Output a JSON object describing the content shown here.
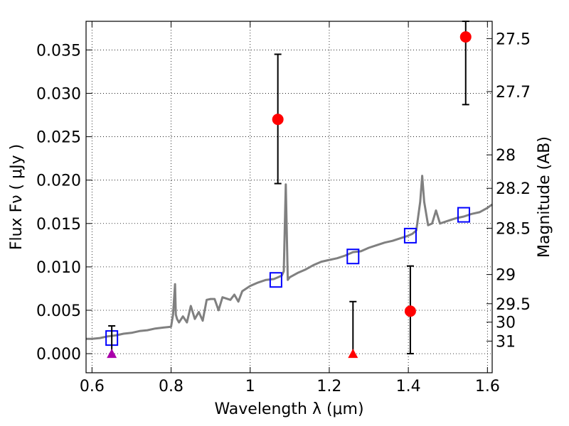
{
  "chart_data": {
    "type": "scatter",
    "xlabel": "Wavelength  λ (μm)",
    "ylabel": "Flux  Fν  ( μJy )",
    "y2label": "Magnitude (AB)",
    "xlim": [
      0.585,
      1.612
    ],
    "ylim": [
      -0.0022,
      0.0383
    ],
    "grid": true,
    "x_ticks": [
      0.6,
      0.8,
      1.0,
      1.2,
      1.4,
      1.6
    ],
    "x_tick_labels": [
      "0.6",
      "0.8",
      "1",
      "1.2",
      "1.4",
      "1.6"
    ],
    "y_ticks": [
      0.0,
      0.005,
      0.01,
      0.015,
      0.02,
      0.025,
      0.03,
      0.035
    ],
    "y_tick_labels": [
      "0.000",
      "0.005",
      "0.010",
      "0.015",
      "0.020",
      "0.025",
      "0.030",
      "0.035"
    ],
    "mag_ticks": [
      27.5,
      27.7,
      28,
      28.2,
      28.5,
      29,
      29.5,
      30,
      31
    ],
    "mag_tick_labels": [
      "27.5",
      "27.7",
      "28",
      "28.2",
      "28.5",
      "29",
      "29.5",
      "30",
      "31"
    ],
    "colors": {
      "model": "#808080",
      "model_photometry": "#0000ff",
      "observed": "#ff0000",
      "upper_limit": "#ff0000",
      "upper_limit_alt": "#aa00aa",
      "errorbar": "#000000",
      "grid": "#000000"
    },
    "series": [
      {
        "type": "line",
        "x": [
          0.585,
          0.6,
          0.62,
          0.64,
          0.66,
          0.68,
          0.7,
          0.72,
          0.74,
          0.76,
          0.78,
          0.8,
          0.805,
          0.81,
          0.812,
          0.815,
          0.82,
          0.83,
          0.84,
          0.85,
          0.86,
          0.87,
          0.88,
          0.89,
          0.9,
          0.91,
          0.92,
          0.93,
          0.95,
          0.96,
          0.97,
          0.98,
          1.0,
          1.02,
          1.04,
          1.06,
          1.07,
          1.08,
          1.085,
          1.09,
          1.095,
          1.1,
          1.12,
          1.14,
          1.16,
          1.18,
          1.2,
          1.22,
          1.24,
          1.26,
          1.28,
          1.3,
          1.32,
          1.34,
          1.36,
          1.38,
          1.4,
          1.41,
          1.42,
          1.43,
          1.435,
          1.44,
          1.45,
          1.46,
          1.47,
          1.48,
          1.5,
          1.52,
          1.54,
          1.56,
          1.58,
          1.6,
          1.612
        ],
        "y": [
          0.0017,
          0.0017,
          0.0018,
          0.002,
          0.0021,
          0.0023,
          0.0024,
          0.0026,
          0.0027,
          0.0029,
          0.003,
          0.0031,
          0.0045,
          0.008,
          0.0045,
          0.004,
          0.0036,
          0.0043,
          0.0036,
          0.0055,
          0.004,
          0.0048,
          0.0038,
          0.0062,
          0.0063,
          0.0063,
          0.005,
          0.0065,
          0.0062,
          0.0068,
          0.006,
          0.0072,
          0.0078,
          0.0082,
          0.0085,
          0.0086,
          0.0088,
          0.009,
          0.0095,
          0.0195,
          0.0085,
          0.0088,
          0.0093,
          0.0097,
          0.0102,
          0.0106,
          0.0108,
          0.011,
          0.0113,
          0.0117,
          0.0118,
          0.0122,
          0.0125,
          0.0128,
          0.013,
          0.0133,
          0.0136,
          0.0138,
          0.0142,
          0.0175,
          0.0205,
          0.0175,
          0.0148,
          0.015,
          0.0165,
          0.015,
          0.0153,
          0.0156,
          0.0158,
          0.0161,
          0.0163,
          0.0168,
          0.0172
        ]
      },
      {
        "type": "marker",
        "marker": "square",
        "x": [
          0.65,
          1.065,
          1.26,
          1.405,
          1.54
        ],
        "y": [
          0.0018,
          0.0085,
          0.0112,
          0.0136,
          0.016
        ]
      },
      {
        "type": "errorbar",
        "marker": "circle",
        "x": [
          1.07,
          1.405,
          1.545
        ],
        "y": [
          0.027,
          0.0049,
          0.0365
        ],
        "yerr_low": [
          0.0074,
          0.0049,
          0.0078
        ],
        "yerr_high": [
          0.0075,
          0.0052,
          0.0022
        ]
      },
      {
        "type": "upper_limit",
        "marker": "triangle",
        "x": [
          0.65,
          1.26
        ],
        "y": [
          0.0,
          0.0
        ],
        "upper": [
          0.0032,
          0.006
        ]
      }
    ]
  }
}
